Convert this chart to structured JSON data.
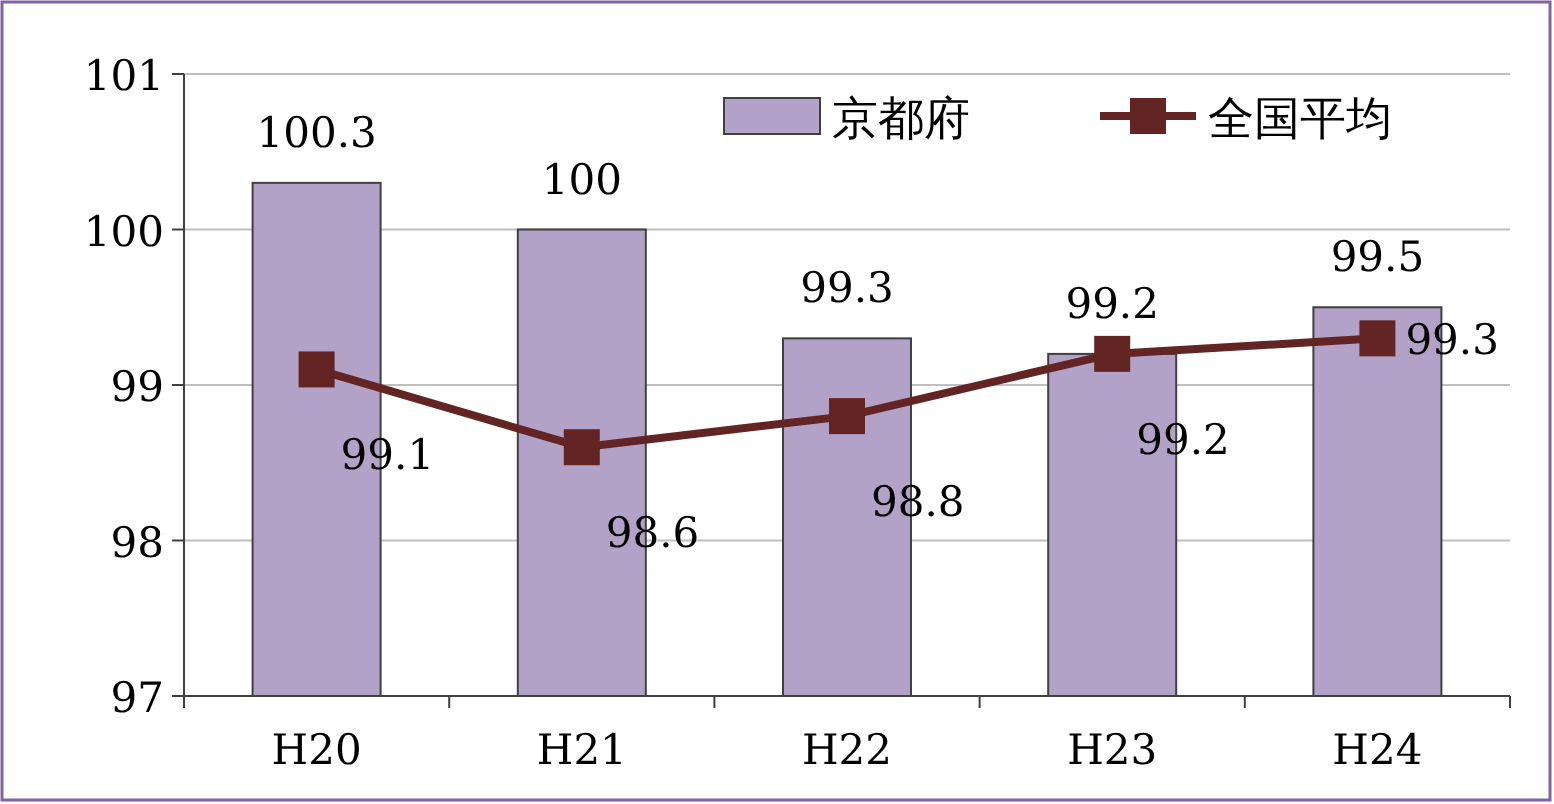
{
  "chart_data": {
    "type": "bar",
    "categories": [
      "H20",
      "H21",
      "H22",
      "H23",
      "H24"
    ],
    "series": [
      {
        "name": "京都府",
        "color": "#b3a2c7",
        "values": [
          100.3,
          100,
          99.3,
          99.2,
          99.5
        ]
      },
      {
        "name": "全国平均",
        "type": "line",
        "color": "#632523",
        "values": [
          99.1,
          98.6,
          98.8,
          99.2,
          99.3
        ]
      }
    ],
    "ylim": [
      97,
      101
    ],
    "yticks": [
      97,
      98,
      99,
      100,
      101
    ],
    "grid": "y",
    "legend": "top right",
    "marker": "square",
    "line_style": "solid",
    "data_labels": true
  }
}
